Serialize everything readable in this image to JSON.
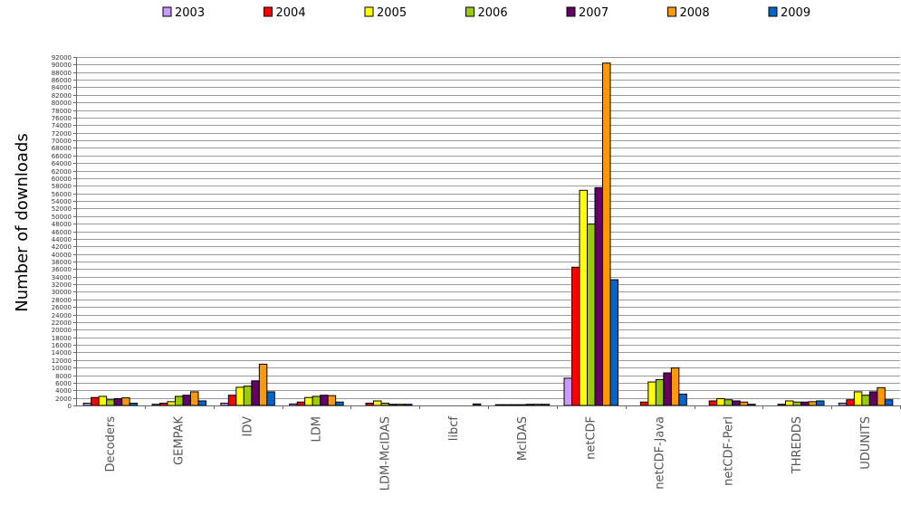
{
  "chart_data": {
    "type": "bar",
    "title": "",
    "xlabel": "",
    "ylabel": "Number of downloads",
    "ylim": [
      0,
      92000
    ],
    "ytick_step": 2000,
    "grid": true,
    "legend_position": "top",
    "categories": [
      "Decoders",
      "GEMPAK",
      "IDV",
      "LDM",
      "LDM-McIDAS",
      "libcf",
      "McIDAS",
      "netCDF",
      "netCDF-Java",
      "netCDF-Perl",
      "THREDDS",
      "UDUNITS"
    ],
    "series": [
      {
        "name": "2003",
        "color": "#cc99ff",
        "values": [
          600,
          300,
          600,
          400,
          0,
          0,
          200,
          7200,
          0,
          0,
          0,
          600
        ]
      },
      {
        "name": "2004",
        "color": "#ff0000",
        "values": [
          2100,
          600,
          2700,
          900,
          600,
          0,
          200,
          36500,
          900,
          1200,
          300,
          1500
        ]
      },
      {
        "name": "2005",
        "color": "#ffff00",
        "values": [
          2400,
          1000,
          4800,
          2100,
          1200,
          0,
          200,
          56800,
          6200,
          1800,
          1200,
          3600
        ]
      },
      {
        "name": "2006",
        "color": "#99cc00",
        "values": [
          1500,
          2400,
          5100,
          2400,
          600,
          0,
          200,
          47900,
          6800,
          1500,
          900,
          2700
        ]
      },
      {
        "name": "2007",
        "color": "#660066",
        "values": [
          1800,
          2700,
          6500,
          2700,
          300,
          0,
          300,
          57500,
          8600,
          1200,
          900,
          3600
        ]
      },
      {
        "name": "2008",
        "color": "#ff9900",
        "values": [
          2000,
          3600,
          10900,
          2600,
          300,
          0,
          300,
          90400,
          9900,
          900,
          1000,
          4700
        ]
      },
      {
        "name": "2009",
        "color": "#0066cc",
        "values": [
          600,
          1200,
          3600,
          900,
          300,
          400,
          300,
          33200,
          3000,
          300,
          1200,
          1500
        ]
      }
    ]
  }
}
